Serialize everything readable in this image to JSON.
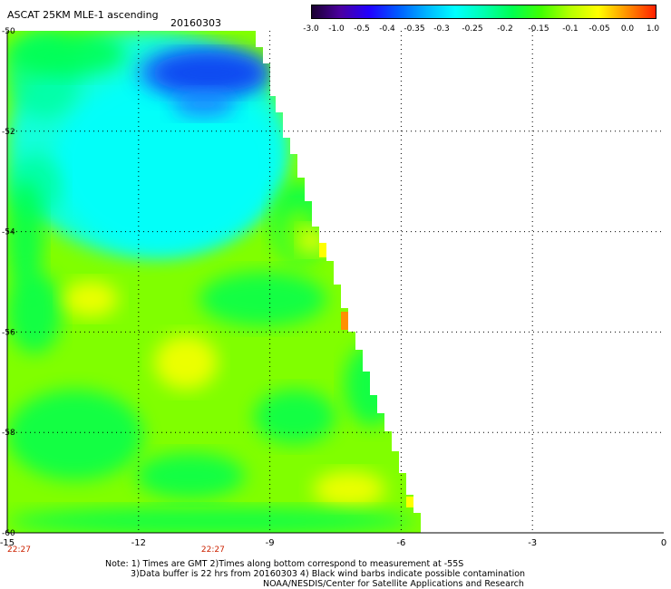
{
  "header": {
    "title": "ASCAT 25KM MLE-1 ascending",
    "date": "20160303"
  },
  "colorbar": {
    "labels": [
      "-3.0",
      "-1.0",
      "-0.5",
      "-0.4",
      "-0.35",
      "-0.3",
      "-0.25",
      "-0.2",
      "-0.15",
      "-0.1",
      "-0.05",
      "0.0",
      "1.0"
    ],
    "colors": [
      "#1a0030",
      "#4b00a0",
      "#2200ff",
      "#005aff",
      "#00b4ff",
      "#00ffff",
      "#00ffb0",
      "#00ff50",
      "#40ff00",
      "#b4ff00",
      "#ffff00",
      "#ff9000",
      "#ff2000"
    ]
  },
  "map": {
    "lat_labels": [
      "-50",
      "-52",
      "-54",
      "-56",
      "-58",
      "-60"
    ],
    "lon_labels": [
      "-15",
      "-12",
      "-9",
      "-6",
      "-3",
      "0"
    ],
    "time_labels": [
      "22:27",
      "22:27"
    ],
    "time_label_color": "#cc2200",
    "swath_colors": {
      "blue_core": "#0a3cf0",
      "blue": "#1e82ff",
      "cyan": "#00ffff",
      "aqua_green": "#00ffa0",
      "green": "#00ff50",
      "lime": "#80ff00",
      "yellow": "#ffff00",
      "orange": "#ff9000"
    }
  },
  "notes": {
    "line1": "Note: 1) Times are GMT 2)Times along bottom correspond to measurement at -55S",
    "line2": "3)Data buffer is 22 hrs from 20160303 4) Black wind barbs indicate possible contamination",
    "line3": "NOAA/NESDIS/Center for Satellite Applications and Research"
  }
}
